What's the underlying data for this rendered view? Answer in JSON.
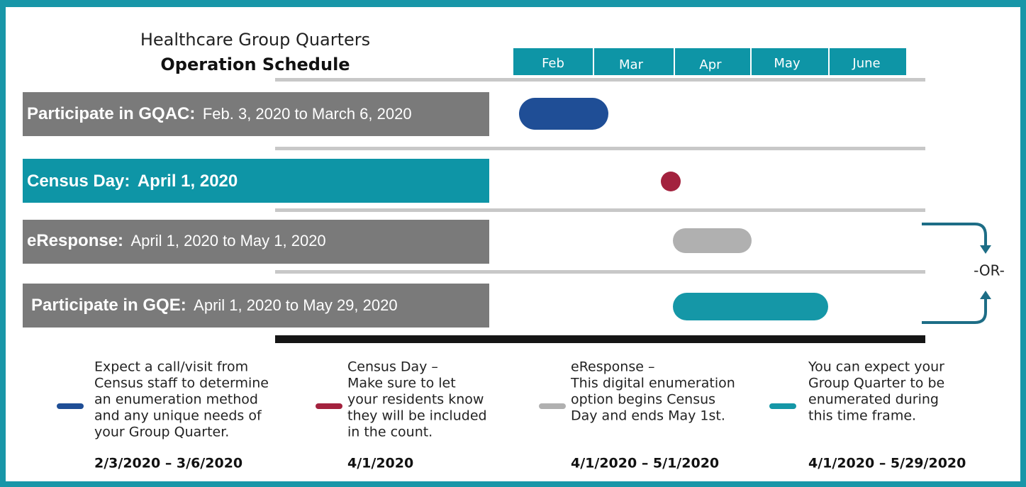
{
  "header": {
    "title": "Healthcare Group Quarters",
    "subtitle": "Operation Schedule"
  },
  "months": [
    "Feb",
    "Mar",
    "Apr",
    "May",
    "June"
  ],
  "rows": [
    {
      "label": "Participate in GQAC:",
      "detail": "Feb. 3, 2020 to March 6, 2020"
    },
    {
      "label": "Census Day:",
      "detail": "April 1, 2020"
    },
    {
      "label": "eResponse:",
      "detail": "April 1, 2020 to May 1, 2020"
    },
    {
      "label": "Participate in GQE:",
      "detail": "April 1, 2020 to May 29, 2020"
    }
  ],
  "or_label": "-OR-",
  "legend": [
    {
      "lines": [
        "Expect a call/visit from",
        "Census staff to determine",
        "an enumeration method",
        "and any unique needs of",
        "your Group Quarter."
      ],
      "dates": "2/3/2020 – 3/6/2020"
    },
    {
      "lines": [
        "Census Day –",
        "Make sure to let",
        "your residents know",
        "they will be included",
        "in the count."
      ],
      "dates": "4/1/2020"
    },
    {
      "lines": [
        "eResponse –",
        "This digital enumeration",
        "option begins Census",
        "Day and ends May 1st."
      ],
      "dates": "4/1/2020 – 5/1/2020"
    },
    {
      "lines": [
        "You can expect your",
        "Group Quarter to be",
        "enumerated during",
        "this time frame."
      ],
      "dates": "4/1/2020 – 5/29/2020"
    }
  ]
}
